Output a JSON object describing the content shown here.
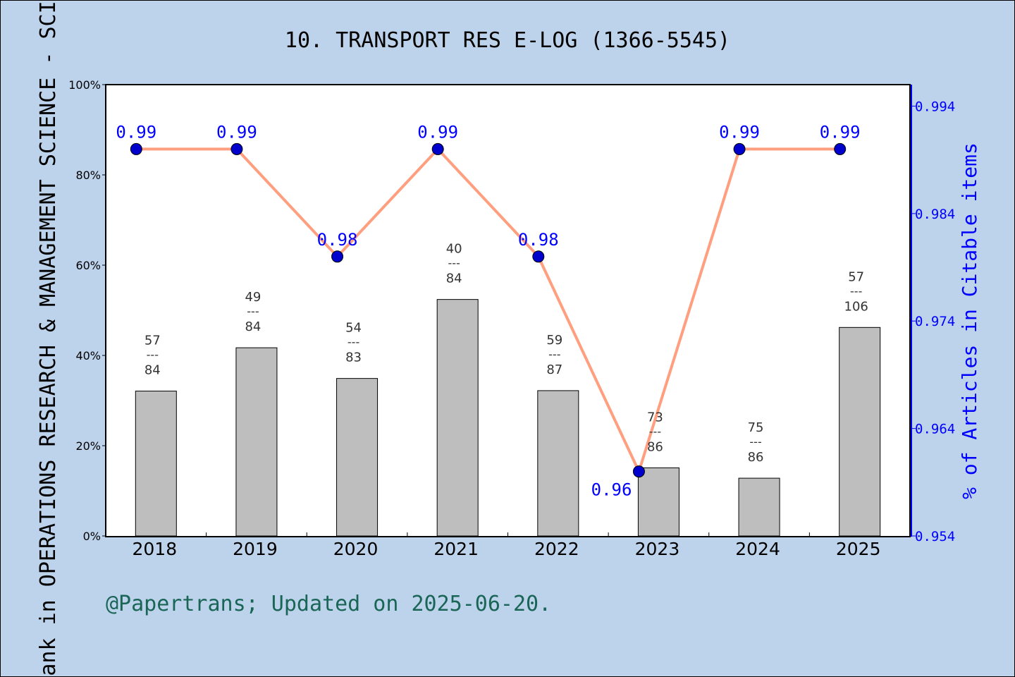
{
  "chart_data": {
    "type": "bar+line",
    "title": "10. TRANSPORT RES E-LOG (1366-5545)",
    "ylabel_left": "Rank in OPERATIONS RESEARCH & MANAGEMENT SCIENCE - SCIE",
    "ylabel_right": "% of Articles in Citable items",
    "categories": [
      "2018",
      "2019",
      "2020",
      "2021",
      "2022",
      "2023",
      "2024",
      "2025"
    ],
    "bars": {
      "ranks": [
        57,
        49,
        54,
        40,
        59,
        73,
        75,
        57
      ],
      "totals": [
        84,
        84,
        83,
        84,
        87,
        86,
        86,
        106
      ],
      "separator": "---",
      "values_percent": [
        32.1,
        41.7,
        34.9,
        52.4,
        32.2,
        15.1,
        12.8,
        46.2
      ],
      "color": "#b8b8b8"
    },
    "line": {
      "values": [
        0.99,
        0.99,
        0.98,
        0.99,
        0.98,
        0.96,
        0.99,
        0.99
      ],
      "labels": [
        "0.99",
        "0.99",
        "0.98",
        "0.99",
        "0.98",
        "0.96",
        "0.99",
        "0.99"
      ],
      "color": "#ff9f7f",
      "marker_color": "#0000cc",
      "label_color": "#0000ff"
    },
    "ylim_left": [
      0,
      100
    ],
    "yticks_left": [
      "0%",
      "20%",
      "40%",
      "60%",
      "80%",
      "100%"
    ],
    "ylim_right": [
      0.954,
      0.996
    ],
    "yticks_right": [
      "0.954",
      "0.964",
      "0.974",
      "0.984",
      "0.994"
    ],
    "grid": false,
    "footer": "@Papertrans; Updated on 2025-06-20.",
    "background": "#bdd3ec",
    "plot_background": "#ffffff"
  }
}
